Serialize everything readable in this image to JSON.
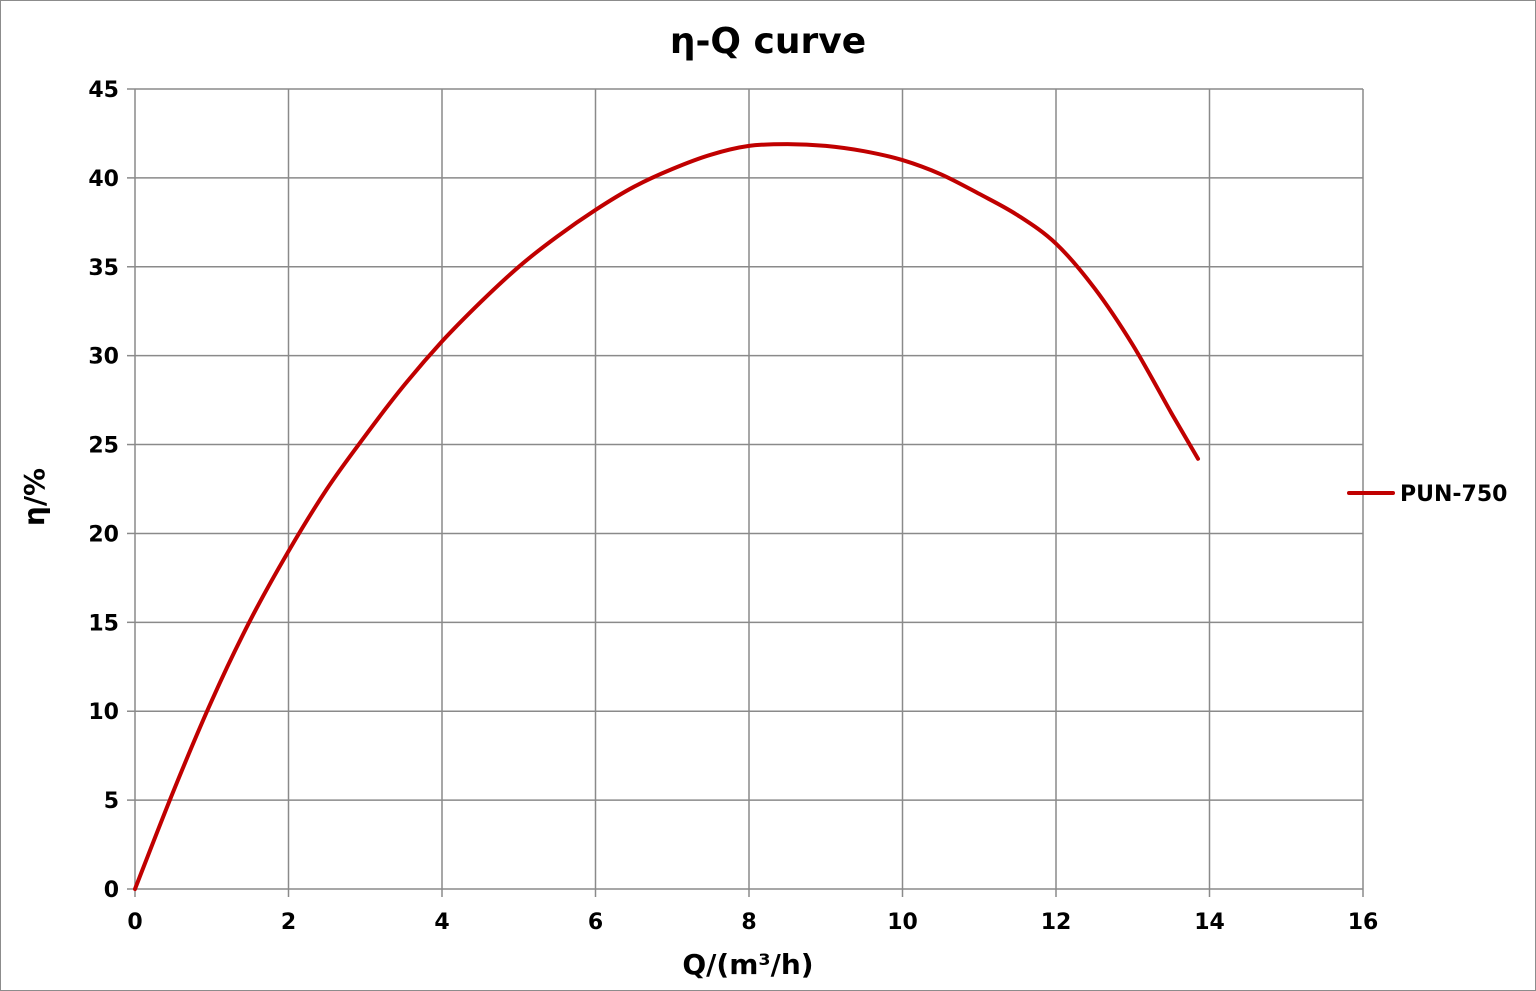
{
  "chart_data": {
    "type": "line",
    "title": "η-Q  curve",
    "xlabel": "Q/(m³/h)",
    "ylabel": "η/%",
    "xlim": [
      0,
      16
    ],
    "ylim": [
      0,
      45
    ],
    "x_ticks": [
      0,
      2,
      4,
      6,
      8,
      10,
      12,
      14,
      16
    ],
    "y_ticks": [
      0,
      5,
      10,
      15,
      20,
      25,
      30,
      35,
      40,
      45
    ],
    "grid": true,
    "legend_position": "right",
    "series": [
      {
        "name": "PUN-750",
        "color": "#c00000",
        "x": [
          0,
          0.5,
          1,
          1.5,
          2,
          2.5,
          3,
          3.5,
          4,
          4.5,
          5,
          5.5,
          6,
          6.5,
          7,
          7.5,
          8,
          8.5,
          9,
          9.5,
          10,
          10.5,
          11,
          11.5,
          12,
          12.5,
          13,
          13.5,
          13.85
        ],
        "values": [
          0,
          5.5,
          10.6,
          15.1,
          19.0,
          22.5,
          25.5,
          28.3,
          30.8,
          33.0,
          35.0,
          36.7,
          38.2,
          39.5,
          40.5,
          41.3,
          41.8,
          41.9,
          41.8,
          41.5,
          41.0,
          40.2,
          39.1,
          37.9,
          36.3,
          33.8,
          30.6,
          26.8,
          24.2
        ]
      }
    ]
  }
}
